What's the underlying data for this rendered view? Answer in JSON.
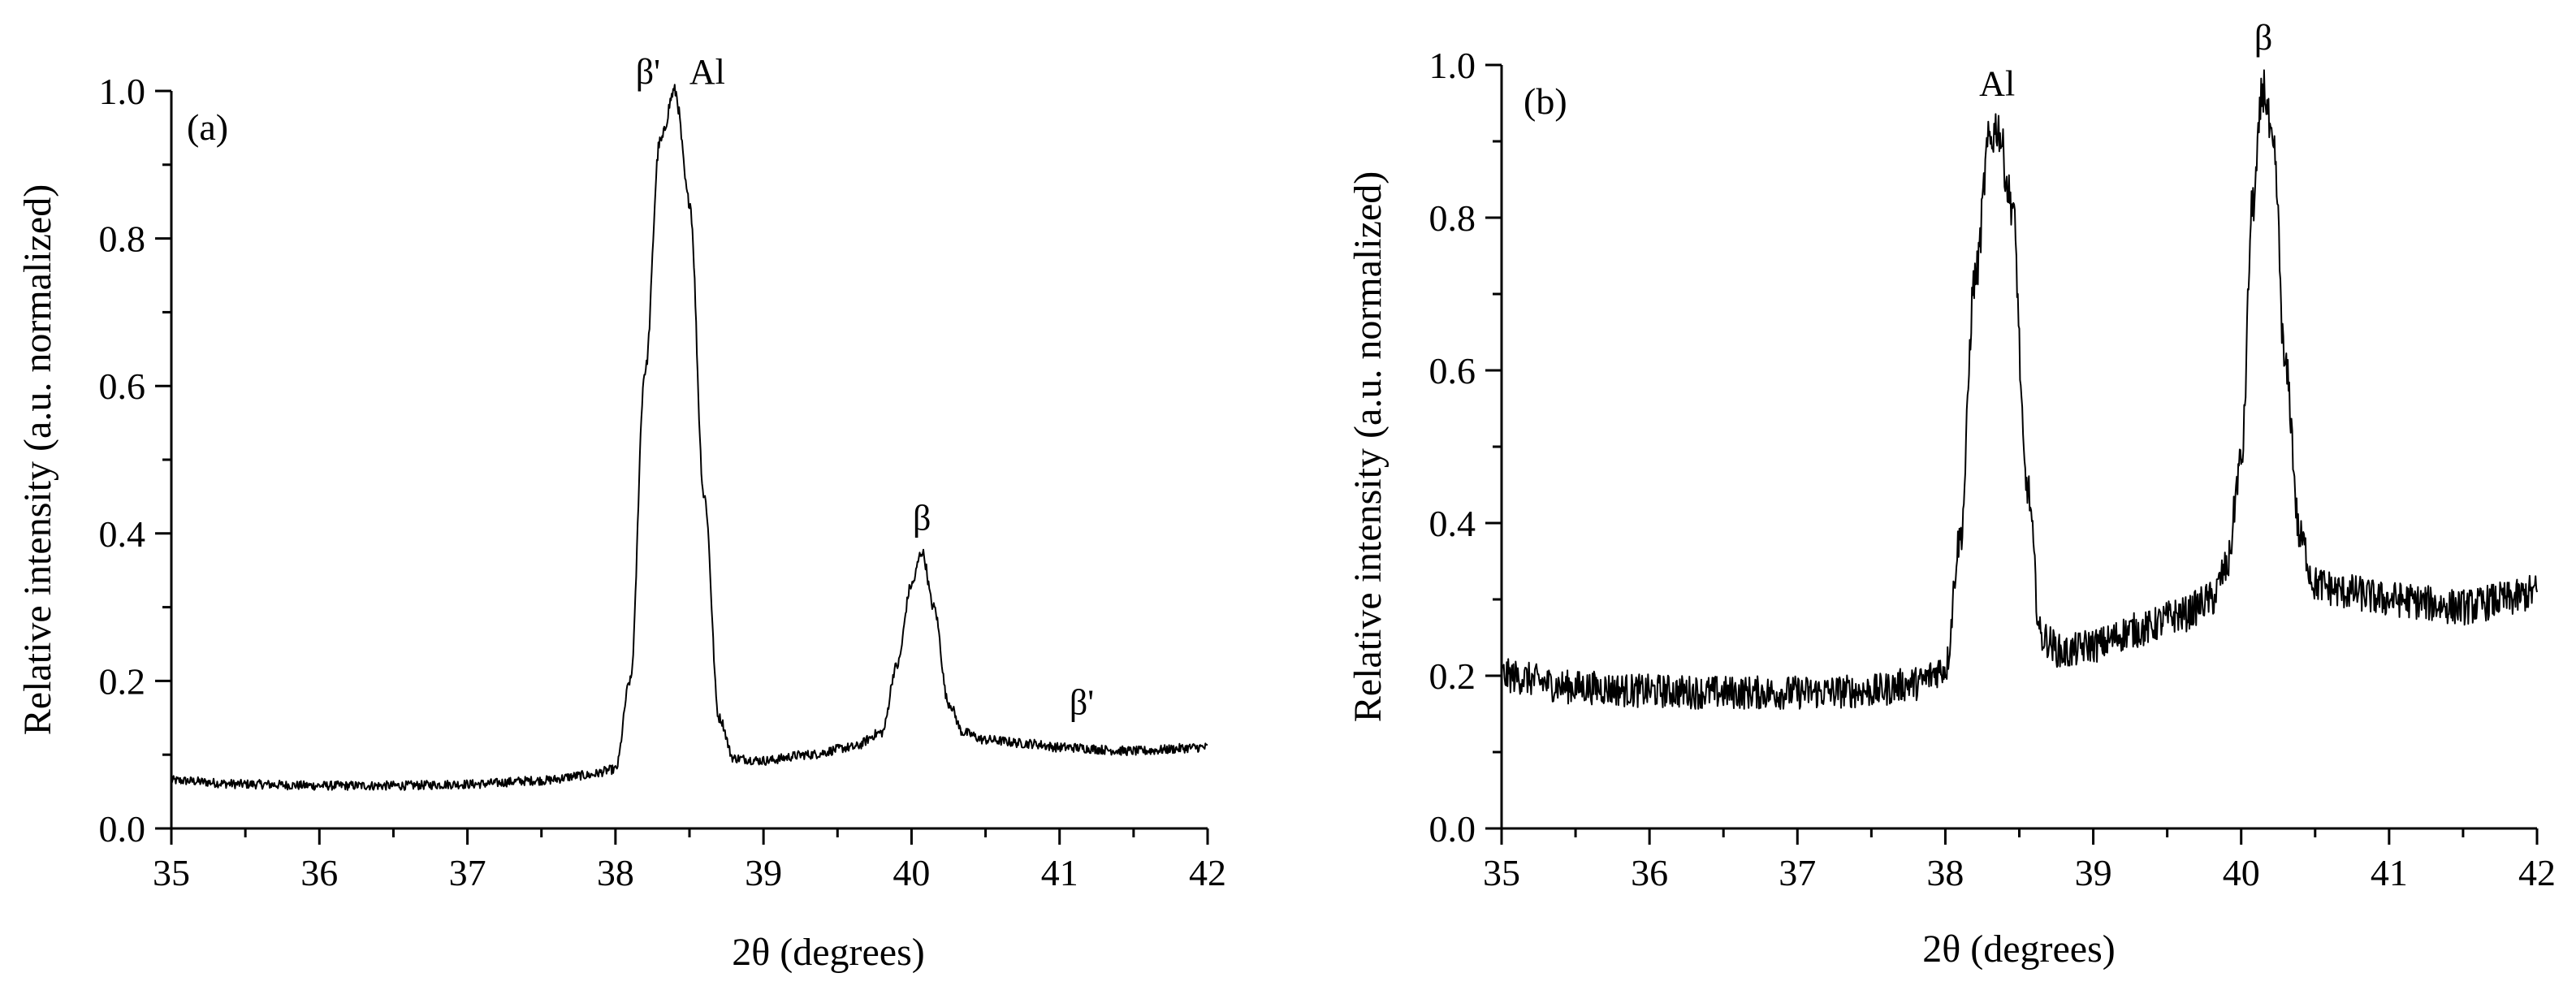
{
  "chart_data": [
    {
      "type": "line",
      "panel_label": "(a)",
      "xlabel": "2θ (degrees)",
      "ylabel": "Relative intensity (a.u. normalized)",
      "xlim": [
        35,
        42
      ],
      "ylim": [
        0,
        1.0
      ],
      "xticks": [
        "35",
        "36",
        "37",
        "38",
        "39",
        "40",
        "41",
        "42"
      ],
      "yticks": [
        "0.0",
        "0.2",
        "0.4",
        "0.6",
        "0.8",
        "1.0"
      ],
      "noise": 0.006,
      "series": [
        {
          "x": [
            35.0,
            35.5,
            36.0,
            36.5,
            37.0,
            37.5,
            37.8,
            38.0,
            38.1,
            38.2,
            38.3,
            38.4,
            38.5,
            38.6,
            38.7,
            38.8,
            39.0,
            39.3,
            39.6,
            39.8,
            39.9,
            40.0,
            40.07,
            40.15,
            40.25,
            40.35,
            40.5,
            40.8,
            41.0,
            41.5,
            42.0
          ],
          "y": [
            0.065,
            0.06,
            0.058,
            0.058,
            0.06,
            0.065,
            0.072,
            0.08,
            0.2,
            0.62,
            0.93,
            1.0,
            0.85,
            0.45,
            0.15,
            0.095,
            0.092,
            0.1,
            0.11,
            0.13,
            0.22,
            0.33,
            0.375,
            0.3,
            0.17,
            0.13,
            0.12,
            0.115,
            0.11,
            0.105,
            0.11
          ]
        }
      ],
      "annotations": [
        {
          "text": "β'",
          "x": 38.22,
          "y": 1.01
        },
        {
          "text": "Al",
          "x": 38.62,
          "y": 1.01
        },
        {
          "text": "β",
          "x": 40.07,
          "y": 0.405
        },
        {
          "text": "β'",
          "x": 41.15,
          "y": 0.155
        }
      ]
    },
    {
      "type": "line",
      "panel_label": "(b)",
      "xlabel": "2θ (degrees)",
      "ylabel": "Relative intensity (a.u. normalized)",
      "xlim": [
        35,
        42
      ],
      "ylim": [
        0,
        1.0
      ],
      "xticks": [
        "35",
        "36",
        "37",
        "38",
        "39",
        "40",
        "41",
        "42"
      ],
      "yticks": [
        "0.0",
        "0.2",
        "0.4",
        "0.6",
        "0.8",
        "1.0"
      ],
      "noise": 0.02,
      "series": [
        {
          "x": [
            35.0,
            35.5,
            36.0,
            36.5,
            37.0,
            37.5,
            37.8,
            38.0,
            38.1,
            38.2,
            38.3,
            38.35,
            38.45,
            38.55,
            38.65,
            38.8,
            39.0,
            39.3,
            39.6,
            39.8,
            39.9,
            40.0,
            40.08,
            40.15,
            40.22,
            40.3,
            40.4,
            40.5,
            40.7,
            41.0,
            41.5,
            41.8,
            42.0
          ],
          "y": [
            0.2,
            0.185,
            0.18,
            0.178,
            0.178,
            0.18,
            0.19,
            0.21,
            0.38,
            0.72,
            0.9,
            0.92,
            0.82,
            0.45,
            0.25,
            0.23,
            0.24,
            0.26,
            0.28,
            0.3,
            0.34,
            0.48,
            0.82,
            0.97,
            0.88,
            0.6,
            0.38,
            0.32,
            0.31,
            0.3,
            0.29,
            0.3,
            0.31
          ]
        }
      ],
      "annotations": [
        {
          "text": "Al",
          "x": 38.35,
          "y": 0.96
        },
        {
          "text": "β",
          "x": 40.15,
          "y": 1.02
        }
      ]
    }
  ]
}
